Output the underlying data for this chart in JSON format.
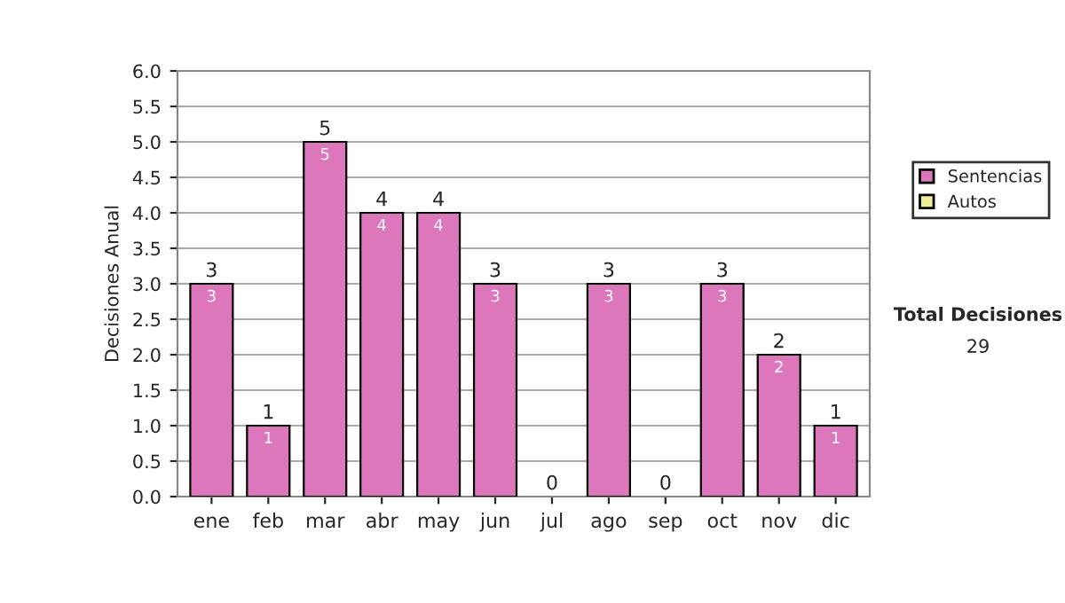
{
  "chart_data": {
    "type": "bar",
    "ylabel": "Decisiones Anual",
    "categories": [
      "ene",
      "feb",
      "mar",
      "abr",
      "may",
      "jun",
      "jul",
      "ago",
      "sep",
      "oct",
      "nov",
      "dic"
    ],
    "stacked": true,
    "series": [
      {
        "name": "Sentencias",
        "color": "#dd77bb",
        "values": [
          3,
          1,
          5,
          4,
          4,
          3,
          0,
          3,
          0,
          3,
          2,
          1
        ],
        "value_labels": [
          "3",
          "1",
          "5",
          "4",
          "4",
          "3",
          null,
          "3",
          null,
          "3",
          "2",
          "1"
        ]
      },
      {
        "name": "Autos",
        "color": "#eeee99",
        "values": [
          0,
          0,
          0,
          0,
          0,
          0,
          0,
          0,
          0,
          0,
          0,
          0
        ]
      }
    ],
    "totals": [
      "3",
      "1",
      "5",
      "4",
      "4",
      "3",
      "0",
      "3",
      "0",
      "3",
      "2",
      "1"
    ],
    "ylim": [
      0,
      6
    ],
    "yticks": [
      {
        "value": 0,
        "label": "0.0"
      },
      {
        "value": 0.5,
        "label": "0.5"
      },
      {
        "value": 1,
        "label": "1.0"
      },
      {
        "value": 1.5,
        "label": "1.5"
      },
      {
        "value": 2,
        "label": "2.0"
      },
      {
        "value": 2.5,
        "label": "2.5"
      },
      {
        "value": 3,
        "label": "3.0"
      },
      {
        "value": 3.5,
        "label": "3.5"
      },
      {
        "value": 4,
        "label": "4.0"
      },
      {
        "value": 4.5,
        "label": "4.5"
      },
      {
        "value": 5,
        "label": "5.0"
      },
      {
        "value": 5.5,
        "label": "5.5"
      },
      {
        "value": 6,
        "label": "6.0"
      }
    ],
    "grid": "y",
    "legend": "right",
    "annotations": [
      "Total Decisiones",
      "29"
    ]
  }
}
